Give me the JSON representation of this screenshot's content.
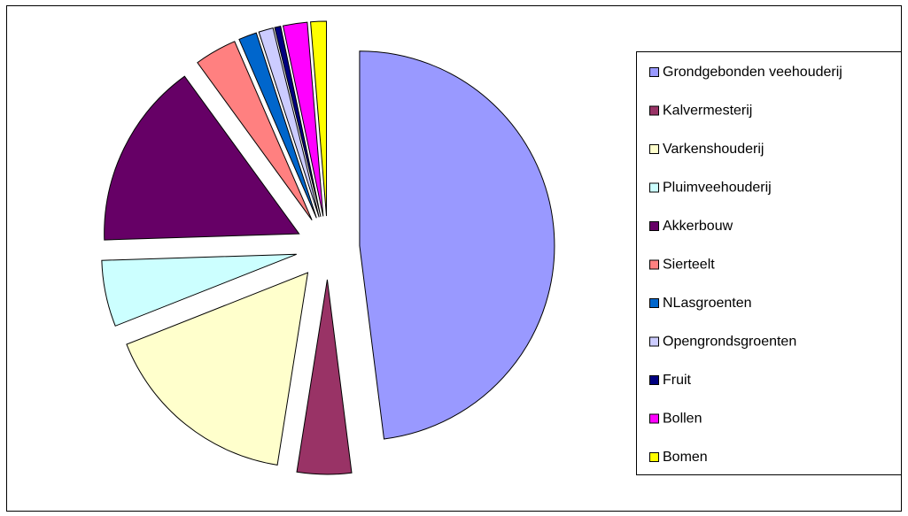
{
  "chart_data": {
    "type": "pie",
    "categories": [
      "Grondgebonden veehouderij",
      "Kalvermesterij",
      "Varkenshouderij",
      "Pluimveehouderij",
      "Akkerbouw",
      "Sierteelt",
      "NLasgroenten",
      "Opengrondsgroenten",
      "Fruit",
      "Bollen",
      "Bomen"
    ],
    "values": [
      48,
      4.5,
      16.5,
      5.5,
      15.5,
      3.5,
      1.5,
      1.2,
      0.5,
      2,
      1.3
    ],
    "colors": [
      "#9999FF",
      "#993366",
      "#FFFFCC",
      "#CCFFFF",
      "#660066",
      "#FF8080",
      "#0066CC",
      "#CCCCFF",
      "#000080",
      "#FF00FF",
      "#FFFF00"
    ],
    "legend": "right"
  }
}
